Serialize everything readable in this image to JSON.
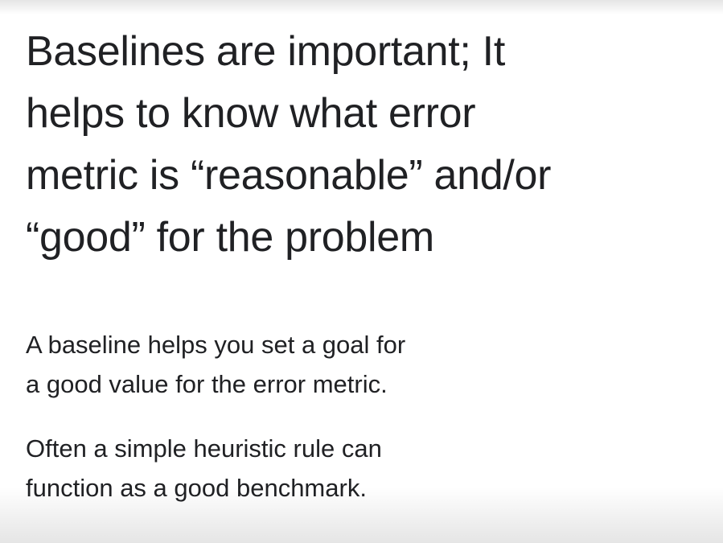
{
  "slide": {
    "title_lines": [
      "Baselines are important; It",
      "helps to know what error",
      "metric is “reasonable” and/or",
      "“good” for the problem"
    ],
    "paragraph_1_lines": [
      "A baseline helps you set a goal for",
      "a good value for the error metric."
    ],
    "paragraph_2_lines": [
      "Often a simple heuristic rule can",
      "function as a good benchmark."
    ],
    "colors": {
      "background": "#ffffff",
      "text": "#202124"
    }
  }
}
